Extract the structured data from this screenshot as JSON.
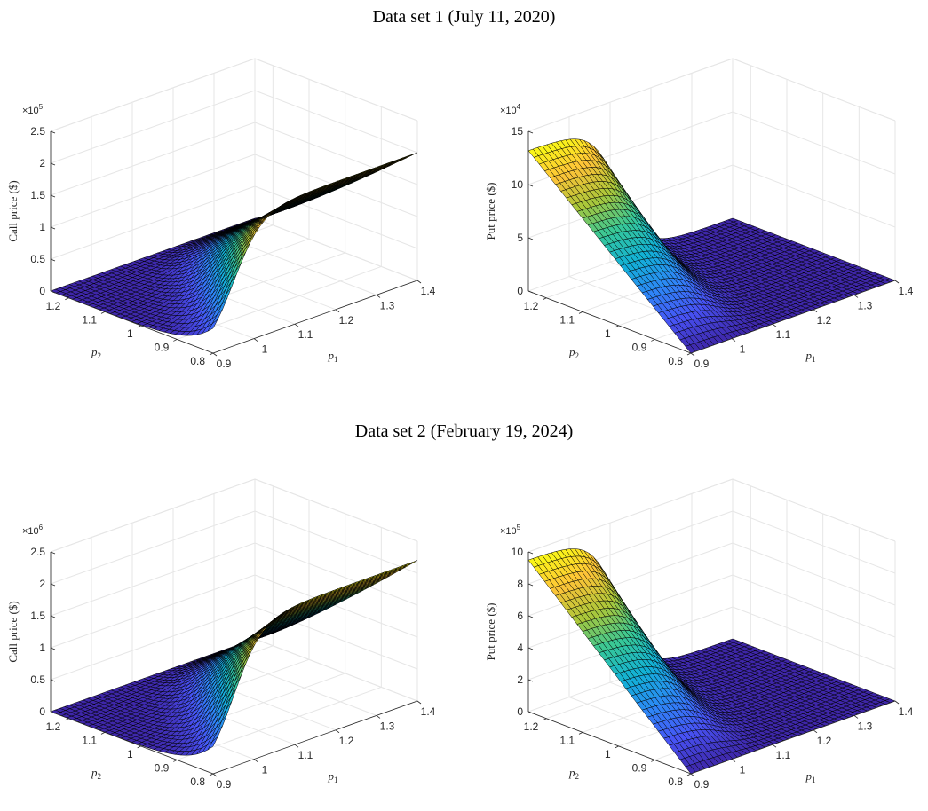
{
  "titles": {
    "set1": "Data set 1 (July 11, 2020)",
    "set2": "Data set 2 (February 19, 2024)"
  },
  "colors": {
    "colormap": "parula",
    "edge": "#000000",
    "grid": "#e6e6e6",
    "axis": "#262626"
  },
  "chart_data": [
    {
      "type": "surface",
      "dataset": "Data set 1 (July 11, 2020)",
      "option": "call",
      "xlabel": "p1",
      "ylabel": "p2",
      "zlabel": "Call price ($)",
      "zmultiplier": "×10",
      "zexponent": "5",
      "xlim": [
        0.9,
        1.4
      ],
      "ylim": [
        0.8,
        1.25
      ],
      "zlim": [
        0,
        2.5
      ],
      "xticks": [
        "0.9",
        "1",
        "1.1",
        "1.2",
        "1.3",
        "1.4"
      ],
      "yticks": [
        "0.8",
        "0.9",
        "1",
        "1.1",
        "1.2"
      ],
      "zticks": [
        "0",
        "0.5",
        "1",
        "1.5",
        "2",
        "2.5"
      ],
      "zmax": 2.0,
      "zmin": 0.0,
      "peak_p1": 1.4,
      "surface_shape": "price rises steeply with p1 above ~1.15 at low p2, flat near 0 elsewhere"
    },
    {
      "type": "surface",
      "dataset": "Data set 1 (July 11, 2020)",
      "option": "put",
      "xlabel": "p1",
      "ylabel": "p2",
      "zlabel": "Put price ($)",
      "zmultiplier": "×10",
      "zexponent": "4",
      "xlim": [
        0.9,
        1.4
      ],
      "ylim": [
        0.8,
        1.25
      ],
      "zlim": [
        0,
        15
      ],
      "xticks": [
        "0.9",
        "1",
        "1.1",
        "1.2",
        "1.3",
        "1.4"
      ],
      "yticks": [
        "0.8",
        "0.9",
        "1",
        "1.1",
        "1.2"
      ],
      "zticks": [
        "0",
        "5",
        "10",
        "15"
      ],
      "zmax": 13.2,
      "zmin": 0.0,
      "peak_p1": 0.9,
      "surface_shape": "price highest at low p1 and high p2, decays to 0 as p1 increases"
    },
    {
      "type": "surface",
      "dataset": "Data set 2 (February 19, 2024)",
      "option": "call",
      "xlabel": "p1",
      "ylabel": "p2",
      "zlabel": "Call price ($)",
      "zmultiplier": "×10",
      "zexponent": "6",
      "xlim": [
        0.9,
        1.4
      ],
      "ylim": [
        0.8,
        1.25
      ],
      "zlim": [
        0,
        2.5
      ],
      "xticks": [
        "0.9",
        "1",
        "1.1",
        "1.2",
        "1.3",
        "1.4"
      ],
      "yticks": [
        "0.8",
        "0.9",
        "1",
        "1.1",
        "1.2"
      ],
      "zticks": [
        "0",
        "0.5",
        "1",
        "1.5",
        "2",
        "2.5"
      ],
      "zmax": 2.2,
      "zmin": 0.0,
      "peak_p1": 1.4,
      "surface_shape": "price rises steeply with p1 above ~1.15 at low p2, flat near 0 elsewhere"
    },
    {
      "type": "surface",
      "dataset": "Data set 2 (February 19, 2024)",
      "option": "put",
      "xlabel": "p1",
      "ylabel": "p2",
      "zlabel": "Put price ($)",
      "zmultiplier": "×10",
      "zexponent": "5",
      "xlim": [
        0.9,
        1.4
      ],
      "ylim": [
        0.8,
        1.25
      ],
      "zlim": [
        0,
        10
      ],
      "xticks": [
        "0.9",
        "1",
        "1.1",
        "1.2",
        "1.3",
        "1.4"
      ],
      "yticks": [
        "0.8",
        "0.9",
        "1",
        "1.1",
        "1.2"
      ],
      "zticks": [
        "0",
        "2",
        "4",
        "6",
        "8",
        "10"
      ],
      "zmax": 9.5,
      "zmin": 0.0,
      "peak_p1": 0.9,
      "surface_shape": "price highest at low p1 and high p2, decays to 0 as p1 increases"
    }
  ]
}
